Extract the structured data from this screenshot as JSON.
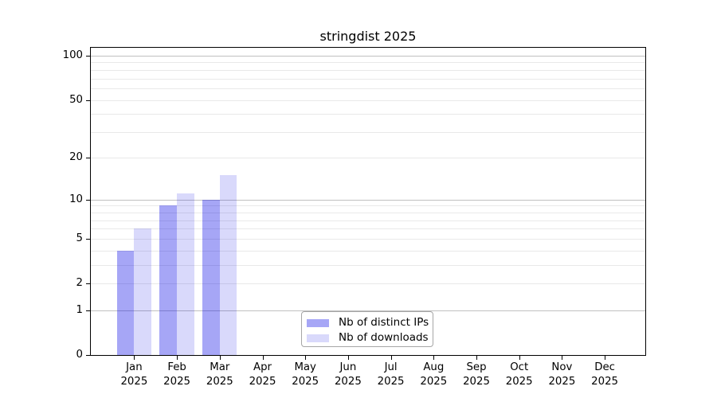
{
  "title": "stringdist 2025",
  "chart_data": {
    "type": "bar",
    "title": "stringdist 2025",
    "categories": [
      "Jan",
      "Feb",
      "Mar",
      "Apr",
      "May",
      "Jun",
      "Jul",
      "Aug",
      "Sep",
      "Oct",
      "Nov",
      "Dec"
    ],
    "year_label": "2025",
    "series": [
      {
        "name": "Nb of distinct IPs",
        "key": "distinct-ips",
        "color": "rgba(0,0,230,0.35)",
        "values": [
          4,
          9,
          10,
          0,
          0,
          0,
          0,
          0,
          0,
          0,
          0,
          0
        ]
      },
      {
        "name": "Nb of downloads",
        "key": "downloads",
        "color": "rgba(0,0,230,0.15)",
        "values": [
          6,
          11,
          15,
          0,
          0,
          0,
          0,
          0,
          0,
          0,
          0,
          0
        ]
      }
    ],
    "xlabel": "",
    "ylabel": "",
    "y_axis": {
      "scale": "log1p",
      "ymin": 0,
      "ymax": 113,
      "tick_values": [
        0,
        1,
        2,
        5,
        10,
        20,
        50,
        100
      ],
      "tick_labels": [
        "0",
        "1",
        "2",
        "5",
        "10",
        "20",
        "50",
        "100"
      ],
      "major_gridlines": [
        1,
        10,
        100
      ],
      "minor_gridlines": [
        2,
        3,
        4,
        5,
        6,
        7,
        8,
        9,
        20,
        30,
        40,
        50,
        60,
        70,
        80,
        90
      ]
    },
    "grid": true,
    "legend": {
      "position": "lower center",
      "entries": [
        "Nb of distinct IPs",
        "Nb of downloads"
      ]
    }
  },
  "colors": {
    "bar_distinct_ips": "rgba(0,0,230,0.35)",
    "bar_downloads": "rgba(0,0,230,0.15)",
    "gridline_minor": "#e9e9e9",
    "gridline_major": "#c0c0c0",
    "axis": "#000000",
    "legend_border": "#a6a6a6",
    "background": "#ffffff"
  }
}
